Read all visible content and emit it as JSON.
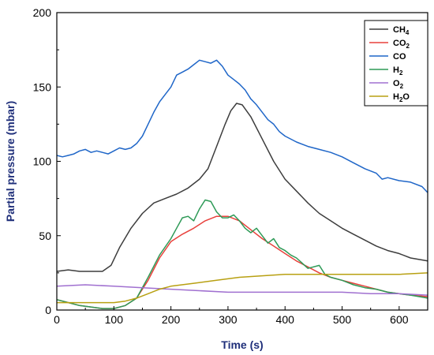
{
  "chart_data": {
    "type": "line",
    "xlabel": "Time (s)",
    "ylabel": "Partial pressure (mbar)",
    "xlim": [
      0,
      650
    ],
    "ylim": [
      0,
      200
    ],
    "xticks": [
      0,
      100,
      200,
      300,
      400,
      500,
      600
    ],
    "yticks": [
      0,
      50,
      100,
      150,
      200
    ],
    "grid": false,
    "legend": "top-right",
    "series": [
      {
        "name": "CH4",
        "base": "CH",
        "sub": "4",
        "color": "#3d3d3d",
        "x": [
          0,
          20,
          40,
          60,
          80,
          95,
          110,
          130,
          150,
          170,
          190,
          210,
          230,
          250,
          265,
          280,
          295,
          305,
          315,
          325,
          340,
          360,
          380,
          400,
          420,
          440,
          460,
          480,
          500,
          520,
          540,
          560,
          580,
          600,
          620,
          650
        ],
        "y": [
          26,
          27,
          26,
          26,
          26,
          30,
          42,
          55,
          65,
          72,
          75,
          78,
          82,
          88,
          95,
          110,
          125,
          134,
          139,
          138,
          130,
          115,
          100,
          88,
          80,
          72,
          65,
          60,
          55,
          51,
          47,
          43,
          40,
          38,
          35,
          33
        ]
      },
      {
        "name": "CO2",
        "base": "CO",
        "sub": "2",
        "color": "#e8413c",
        "x": [
          0,
          40,
          80,
          100,
          120,
          140,
          160,
          180,
          200,
          220,
          240,
          260,
          280,
          300,
          320,
          340,
          360,
          380,
          400,
          420,
          440,
          460,
          480,
          500,
          520,
          540,
          560,
          580,
          600,
          620,
          650
        ],
        "y": [
          7,
          3,
          1,
          1,
          3,
          8,
          20,
          35,
          46,
          51,
          55,
          60,
          63,
          63,
          60,
          54,
          48,
          43,
          38,
          33,
          29,
          25,
          22,
          20,
          18,
          16,
          14,
          12,
          11,
          10,
          9
        ]
      },
      {
        "name": "CO",
        "base": "CO",
        "sub": "",
        "color": "#1f66c8",
        "x": [
          0,
          10,
          20,
          30,
          40,
          50,
          60,
          70,
          80,
          90,
          100,
          110,
          120,
          130,
          140,
          150,
          160,
          170,
          180,
          190,
          200,
          210,
          220,
          230,
          240,
          250,
          260,
          270,
          280,
          290,
          300,
          310,
          320,
          330,
          340,
          350,
          360,
          370,
          380,
          390,
          400,
          420,
          440,
          460,
          480,
          500,
          520,
          540,
          560,
          570,
          580,
          600,
          620,
          640,
          650
        ],
        "y": [
          104,
          103,
          104,
          105,
          107,
          108,
          106,
          107,
          106,
          105,
          107,
          109,
          108,
          109,
          112,
          117,
          125,
          133,
          140,
          145,
          150,
          158,
          160,
          162,
          165,
          168,
          167,
          166,
          168,
          164,
          158,
          155,
          152,
          148,
          142,
          138,
          133,
          128,
          125,
          120,
          117,
          113,
          110,
          108,
          106,
          103,
          99,
          95,
          92,
          88,
          89,
          87,
          86,
          83,
          79
        ]
      },
      {
        "name": "H2",
        "base": "H",
        "sub": "2",
        "color": "#2e9a57",
        "x": [
          0,
          40,
          80,
          100,
          120,
          140,
          160,
          180,
          200,
          210,
          220,
          230,
          240,
          250,
          260,
          270,
          280,
          290,
          300,
          310,
          320,
          330,
          340,
          350,
          360,
          370,
          380,
          390,
          400,
          410,
          420,
          440,
          460,
          470,
          480,
          500,
          520,
          540,
          560,
          580,
          600,
          620,
          650
        ],
        "y": [
          7,
          3,
          1,
          1,
          3,
          8,
          22,
          37,
          48,
          55,
          62,
          63,
          60,
          68,
          74,
          73,
          66,
          62,
          62,
          64,
          60,
          55,
          52,
          55,
          50,
          45,
          48,
          42,
          40,
          37,
          35,
          28,
          30,
          24,
          22,
          20,
          17,
          15,
          14,
          12,
          11,
          10,
          8
        ]
      },
      {
        "name": "O2",
        "base": "O",
        "sub": "2",
        "color": "#a070d0",
        "x": [
          0,
          50,
          100,
          150,
          200,
          250,
          300,
          350,
          400,
          450,
          500,
          550,
          600,
          650
        ],
        "y": [
          16,
          17,
          16,
          15,
          14,
          13,
          12,
          12,
          12,
          12,
          12,
          11,
          11,
          10
        ]
      },
      {
        "name": "H2O",
        "base": "H",
        "sub": "2",
        "tail": "O",
        "color": "#b8a012",
        "x": [
          0,
          40,
          80,
          100,
          120,
          140,
          160,
          180,
          200,
          240,
          280,
          320,
          360,
          400,
          440,
          480,
          520,
          560,
          600,
          650
        ],
        "y": [
          5,
          5,
          5,
          5,
          6,
          8,
          11,
          14,
          16,
          18,
          20,
          22,
          23,
          24,
          24,
          24,
          24,
          24,
          24,
          25
        ]
      }
    ]
  }
}
